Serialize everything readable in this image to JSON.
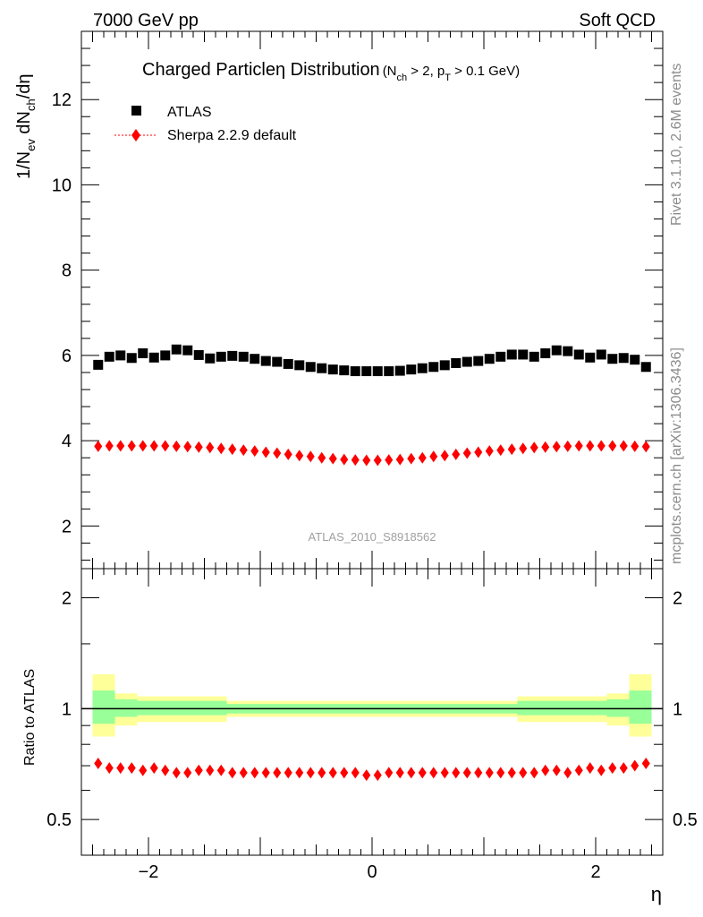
{
  "header": {
    "left": "7000 GeV pp",
    "right": "Soft QCD"
  },
  "main_title": {
    "text": "Charged Particleη Distribution",
    "cuts": "(N",
    "cuts_sub1": "ch",
    "cuts_mid": " > 2, p",
    "cuts_sub2": "T",
    "cuts_end": " > 0.1 GeV)"
  },
  "ylabel_top": {
    "pre": "1/N",
    "sub1": "ev",
    "mid": " dN",
    "sub2": "ch",
    "post": "/dη"
  },
  "ylabel_bottom": "Ratio to ATLAS",
  "xlabel": "η",
  "analysis_id": "ATLAS_2010_S8918562",
  "side_text_top": "Rivet 3.1.10,  2.6M events",
  "side_text_bottom": "mcplots.cern.ch [arXiv:1306.3436]",
  "colors": {
    "data": "#000000",
    "mc": "#ff0000",
    "band_outer": "#ffff99",
    "band_inner": "#99ff99",
    "side_text": "#8c8c8c",
    "analysis_text": "#a0a0a0"
  },
  "chart_data": [
    {
      "type": "scatter",
      "panel": "main",
      "title": "Charged Particleη Distribution",
      "xlabel": "η",
      "ylabel": "1/N_ev dN_ch/dη",
      "xlim": [
        -2.6,
        2.6
      ],
      "ylim": [
        1.0,
        13.6
      ],
      "yticks": [
        2,
        4,
        6,
        8,
        10,
        12
      ],
      "grid": false,
      "legend_position": "top-left",
      "x": [
        -2.45,
        -2.35,
        -2.25,
        -2.15,
        -2.05,
        -1.95,
        -1.85,
        -1.75,
        -1.65,
        -1.55,
        -1.45,
        -1.35,
        -1.25,
        -1.15,
        -1.05,
        -0.95,
        -0.85,
        -0.75,
        -0.65,
        -0.55,
        -0.45,
        -0.35,
        -0.25,
        -0.15,
        -0.05,
        0.05,
        0.15,
        0.25,
        0.35,
        0.45,
        0.55,
        0.65,
        0.75,
        0.85,
        0.95,
        1.05,
        1.15,
        1.25,
        1.35,
        1.45,
        1.55,
        1.65,
        1.75,
        1.85,
        1.95,
        2.05,
        2.15,
        2.25,
        2.35,
        2.45
      ],
      "series": [
        {
          "name": "ATLAS",
          "marker": "square",
          "values": [
            5.78,
            5.97,
            6.0,
            5.94,
            6.05,
            5.95,
            6.0,
            6.14,
            6.12,
            6.01,
            5.93,
            5.97,
            5.99,
            5.97,
            5.92,
            5.87,
            5.85,
            5.8,
            5.77,
            5.73,
            5.7,
            5.67,
            5.65,
            5.63,
            5.63,
            5.63,
            5.63,
            5.64,
            5.67,
            5.7,
            5.73,
            5.77,
            5.82,
            5.85,
            5.87,
            5.92,
            5.97,
            6.02,
            6.02,
            5.97,
            6.05,
            6.12,
            6.1,
            6.02,
            5.95,
            6.02,
            5.92,
            5.94,
            5.9,
            5.73
          ]
        },
        {
          "name": "Sherpa 2.2.9 default",
          "marker": "diamond",
          "values": [
            3.87,
            3.88,
            3.88,
            3.88,
            3.88,
            3.88,
            3.88,
            3.87,
            3.86,
            3.85,
            3.84,
            3.82,
            3.8,
            3.78,
            3.76,
            3.73,
            3.71,
            3.68,
            3.65,
            3.63,
            3.6,
            3.58,
            3.56,
            3.55,
            3.54,
            3.54,
            3.55,
            3.56,
            3.58,
            3.6,
            3.63,
            3.65,
            3.68,
            3.71,
            3.73,
            3.76,
            3.78,
            3.8,
            3.82,
            3.84,
            3.85,
            3.86,
            3.87,
            3.88,
            3.88,
            3.88,
            3.88,
            3.88,
            3.87,
            3.86
          ]
        }
      ]
    },
    {
      "type": "scatter",
      "panel": "ratio",
      "xlabel": "η",
      "ylabel": "Ratio to ATLAS",
      "log_y": true,
      "xlim": [
        -2.6,
        2.6
      ],
      "ylim": [
        0.4,
        2.4
      ],
      "yticks": [
        0.5,
        1,
        2
      ],
      "xticks": [
        -2,
        0,
        2
      ],
      "reference_line": 1,
      "bands": [
        {
          "edges": [
            -2.5,
            -2.3
          ],
          "outer": [
            0.84,
            1.24
          ],
          "inner": [
            0.91,
            1.12
          ]
        },
        {
          "edges": [
            -2.3,
            -2.1
          ],
          "outer": [
            0.9,
            1.1
          ],
          "inner": [
            0.95,
            1.06
          ]
        },
        {
          "edges": [
            -2.1,
            -1.3
          ],
          "outer": [
            0.92,
            1.08
          ],
          "inner": [
            0.96,
            1.05
          ]
        },
        {
          "edges": [
            -1.3,
            1.3
          ],
          "outer": [
            0.95,
            1.05
          ],
          "inner": [
            0.97,
            1.03
          ]
        },
        {
          "edges": [
            1.3,
            2.1
          ],
          "outer": [
            0.92,
            1.08
          ],
          "inner": [
            0.96,
            1.05
          ]
        },
        {
          "edges": [
            2.1,
            2.3
          ],
          "outer": [
            0.9,
            1.1
          ],
          "inner": [
            0.95,
            1.06
          ]
        },
        {
          "edges": [
            2.3,
            2.5
          ],
          "outer": [
            0.84,
            1.24
          ],
          "inner": [
            0.91,
            1.12
          ]
        }
      ],
      "series": [
        {
          "name": "Sherpa 2.2.9 default",
          "marker": "diamond",
          "values": [
            0.71,
            0.69,
            0.69,
            0.69,
            0.68,
            0.69,
            0.68,
            0.67,
            0.67,
            0.68,
            0.68,
            0.68,
            0.67,
            0.67,
            0.67,
            0.67,
            0.67,
            0.67,
            0.67,
            0.67,
            0.67,
            0.67,
            0.67,
            0.67,
            0.66,
            0.66,
            0.67,
            0.67,
            0.67,
            0.67,
            0.67,
            0.67,
            0.67,
            0.67,
            0.67,
            0.67,
            0.67,
            0.67,
            0.67,
            0.67,
            0.68,
            0.68,
            0.67,
            0.68,
            0.69,
            0.68,
            0.69,
            0.69,
            0.7,
            0.71
          ]
        }
      ]
    }
  ]
}
